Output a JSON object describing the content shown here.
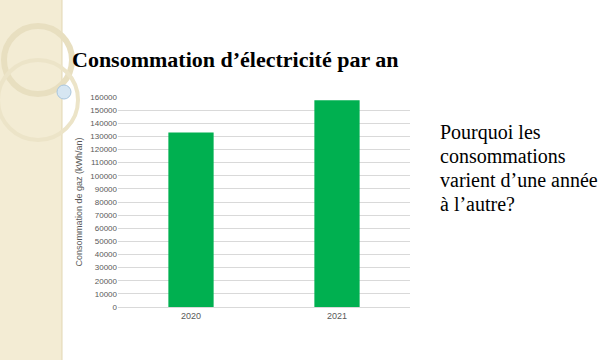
{
  "chart_data": {
    "type": "bar",
    "title": "Consommation d’électricité par an",
    "y_label": "Consommation de gaz (kWh/an)",
    "categories": [
      "2020",
      "2021"
    ],
    "values": [
      133000,
      157500
    ],
    "color": "#00b050",
    "ylim": [
      0,
      160000
    ],
    "yticks": [
      0,
      10000,
      20000,
      30000,
      40000,
      50000,
      60000,
      70000,
      80000,
      90000,
      100000,
      110000,
      120000,
      130000,
      140000,
      150000,
      160000
    ],
    "grid": true,
    "annotation": "Pourquoi les consommations varient d’une année à l’autre?"
  }
}
